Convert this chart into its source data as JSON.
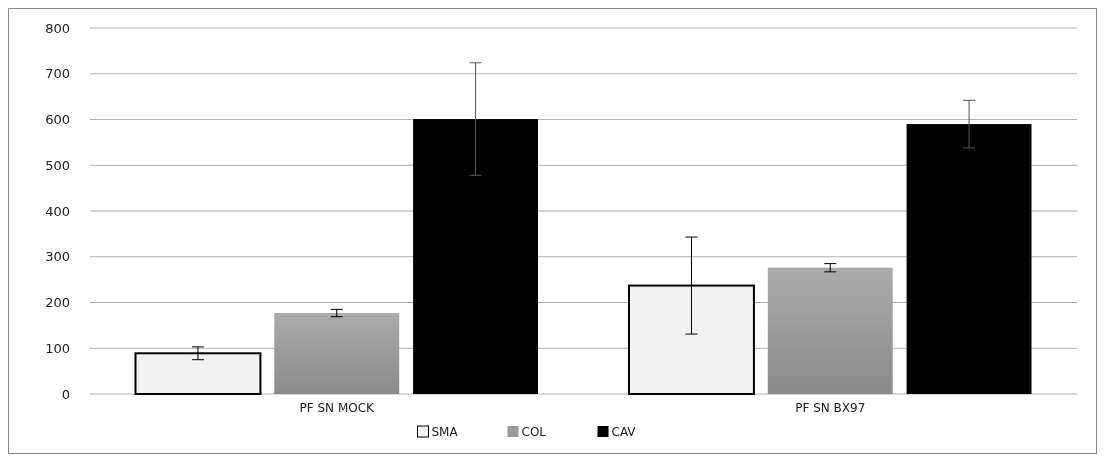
{
  "chart_data": {
    "type": "bar",
    "categories": [
      "PF SN MOCK",
      "PF SN BX97"
    ],
    "series": [
      {
        "name": "SMA",
        "color": "#f2f2f2",
        "values": [
          89,
          237
        ],
        "errors": [
          14,
          106
        ]
      },
      {
        "name": "COL",
        "color": "#9a9a9a",
        "values": [
          177,
          276
        ],
        "errors": [
          8,
          9
        ]
      },
      {
        "name": "CAV",
        "color": "#000000",
        "values": [
          601,
          590
        ],
        "errors": [
          123,
          52
        ]
      }
    ],
    "ylim": [
      0,
      800
    ],
    "yticks": [
      0,
      100,
      200,
      300,
      400,
      500,
      600,
      700,
      800
    ],
    "grid": "y",
    "legend": "bottom"
  }
}
